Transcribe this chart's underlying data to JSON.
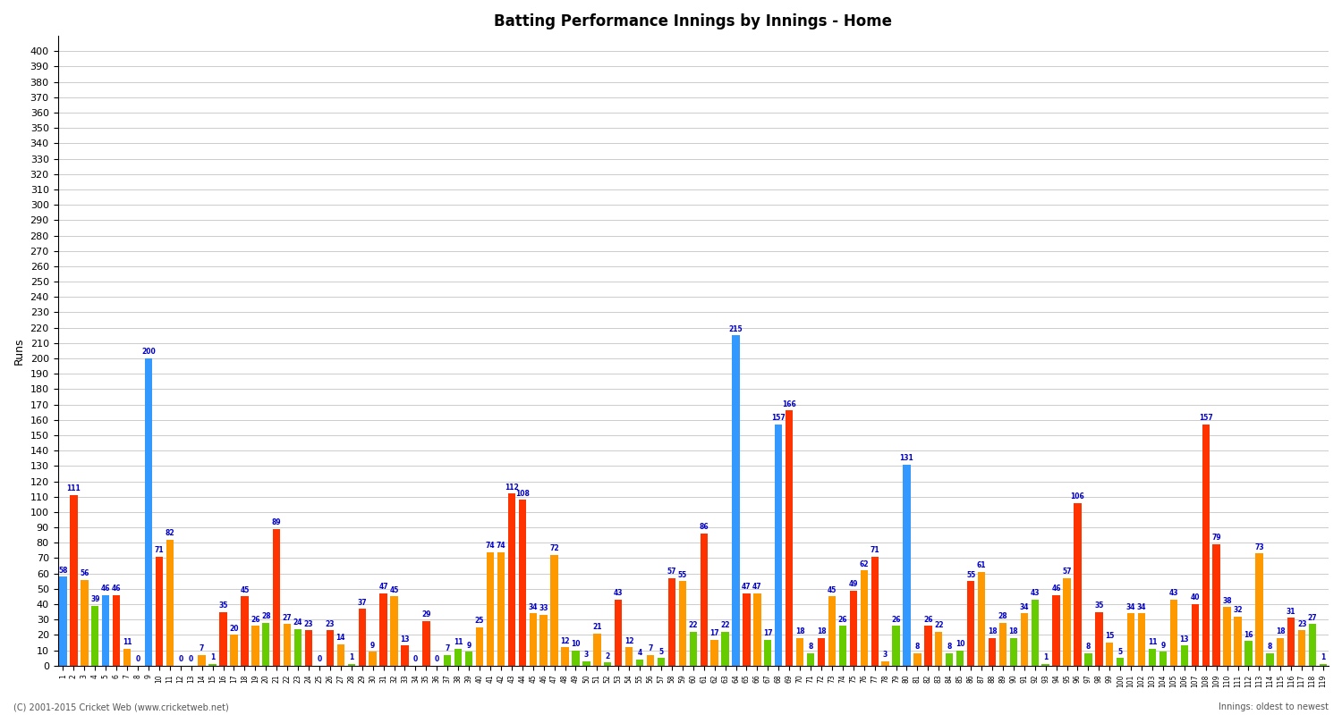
{
  "title": "Batting Performance Innings by Innings - Home",
  "ylabel": "Runs",
  "footer": "(C) 2001-2015 Cricket Web (www.cricketweb.net)",
  "footer2": "Innings: oldest to newest",
  "ylim": [
    0,
    410
  ],
  "yticks": [
    0,
    10,
    20,
    30,
    40,
    50,
    60,
    70,
    80,
    90,
    100,
    110,
    120,
    130,
    140,
    150,
    160,
    170,
    180,
    190,
    200,
    210,
    220,
    230,
    240,
    250,
    260,
    270,
    280,
    290,
    300,
    310,
    320,
    330,
    340,
    350,
    360,
    370,
    380,
    390,
    400
  ],
  "bar_width": 0.7,
  "colors": [
    "#3399FF",
    "#FF3300",
    "#FF9900",
    "#66CC00"
  ],
  "innings": [
    {
      "num": 1,
      "runs": 58,
      "type": 0
    },
    {
      "num": 2,
      "runs": 111,
      "type": 1
    },
    {
      "num": 3,
      "runs": 56,
      "type": 2
    },
    {
      "num": 4,
      "runs": 39,
      "type": 3
    },
    {
      "num": 5,
      "runs": 46,
      "type": 0
    },
    {
      "num": 6,
      "runs": 46,
      "type": 1
    },
    {
      "num": 7,
      "runs": 11,
      "type": 2
    },
    {
      "num": 8,
      "runs": 0,
      "type": 3
    },
    {
      "num": 9,
      "runs": 200,
      "type": 0
    },
    {
      "num": 10,
      "runs": 71,
      "type": 1
    },
    {
      "num": 11,
      "runs": 82,
      "type": 2
    },
    {
      "num": 12,
      "runs": 0,
      "type": 0
    },
    {
      "num": 13,
      "runs": 0,
      "type": 1
    },
    {
      "num": 14,
      "runs": 7,
      "type": 2
    },
    {
      "num": 15,
      "runs": 1,
      "type": 3
    },
    {
      "num": 16,
      "runs": 35,
      "type": 1
    },
    {
      "num": 17,
      "runs": 20,
      "type": 2
    },
    {
      "num": 18,
      "runs": 45,
      "type": 1
    },
    {
      "num": 19,
      "runs": 26,
      "type": 2
    },
    {
      "num": 20,
      "runs": 28,
      "type": 3
    },
    {
      "num": 21,
      "runs": 89,
      "type": 1
    },
    {
      "num": 22,
      "runs": 27,
      "type": 2
    },
    {
      "num": 23,
      "runs": 24,
      "type": 3
    },
    {
      "num": 24,
      "runs": 23,
      "type": 1
    },
    {
      "num": 25,
      "runs": 0,
      "type": 3
    },
    {
      "num": 26,
      "runs": 23,
      "type": 1
    },
    {
      "num": 27,
      "runs": 14,
      "type": 2
    },
    {
      "num": 28,
      "runs": 1,
      "type": 3
    },
    {
      "num": 29,
      "runs": 37,
      "type": 1
    },
    {
      "num": 30,
      "runs": 9,
      "type": 2
    },
    {
      "num": 31,
      "runs": 47,
      "type": 1
    },
    {
      "num": 32,
      "runs": 45,
      "type": 2
    },
    {
      "num": 33,
      "runs": 13,
      "type": 1
    },
    {
      "num": 34,
      "runs": 0,
      "type": 2
    },
    {
      "num": 35,
      "runs": 29,
      "type": 1
    },
    {
      "num": 36,
      "runs": 0,
      "type": 2
    },
    {
      "num": 37,
      "runs": 7,
      "type": 3
    },
    {
      "num": 38,
      "runs": 11,
      "type": 3
    },
    {
      "num": 39,
      "runs": 9,
      "type": 3
    },
    {
      "num": 40,
      "runs": 25,
      "type": 2
    },
    {
      "num": 41,
      "runs": 74,
      "type": 2
    },
    {
      "num": 42,
      "runs": 74,
      "type": 2
    },
    {
      "num": 43,
      "runs": 112,
      "type": 1
    },
    {
      "num": 44,
      "runs": 108,
      "type": 1
    },
    {
      "num": 45,
      "runs": 34,
      "type": 2
    },
    {
      "num": 46,
      "runs": 33,
      "type": 2
    },
    {
      "num": 47,
      "runs": 72,
      "type": 2
    },
    {
      "num": 48,
      "runs": 12,
      "type": 2
    },
    {
      "num": 49,
      "runs": 10,
      "type": 3
    },
    {
      "num": 50,
      "runs": 3,
      "type": 3
    },
    {
      "num": 51,
      "runs": 21,
      "type": 2
    },
    {
      "num": 52,
      "runs": 2,
      "type": 3
    },
    {
      "num": 53,
      "runs": 43,
      "type": 1
    },
    {
      "num": 54,
      "runs": 12,
      "type": 2
    },
    {
      "num": 55,
      "runs": 4,
      "type": 3
    },
    {
      "num": 56,
      "runs": 7,
      "type": 2
    },
    {
      "num": 57,
      "runs": 5,
      "type": 3
    },
    {
      "num": 58,
      "runs": 57,
      "type": 1
    },
    {
      "num": 59,
      "runs": 55,
      "type": 2
    },
    {
      "num": 60,
      "runs": 22,
      "type": 3
    },
    {
      "num": 61,
      "runs": 86,
      "type": 1
    },
    {
      "num": 62,
      "runs": 17,
      "type": 2
    },
    {
      "num": 63,
      "runs": 22,
      "type": 3
    },
    {
      "num": 64,
      "runs": 215,
      "type": 0
    },
    {
      "num": 65,
      "runs": 47,
      "type": 1
    },
    {
      "num": 66,
      "runs": 47,
      "type": 2
    },
    {
      "num": 67,
      "runs": 17,
      "type": 3
    },
    {
      "num": 68,
      "runs": 157,
      "type": 0
    },
    {
      "num": 69,
      "runs": 166,
      "type": 1
    },
    {
      "num": 70,
      "runs": 18,
      "type": 2
    },
    {
      "num": 71,
      "runs": 8,
      "type": 3
    },
    {
      "num": 72,
      "runs": 18,
      "type": 1
    },
    {
      "num": 73,
      "runs": 45,
      "type": 2
    },
    {
      "num": 74,
      "runs": 26,
      "type": 3
    },
    {
      "num": 75,
      "runs": 49,
      "type": 1
    },
    {
      "num": 76,
      "runs": 62,
      "type": 2
    },
    {
      "num": 77,
      "runs": 71,
      "type": 1
    },
    {
      "num": 78,
      "runs": 3,
      "type": 2
    },
    {
      "num": 79,
      "runs": 26,
      "type": 3
    },
    {
      "num": 80,
      "runs": 131,
      "type": 0
    },
    {
      "num": 81,
      "runs": 8,
      "type": 2
    },
    {
      "num": 82,
      "runs": 26,
      "type": 1
    },
    {
      "num": 83,
      "runs": 22,
      "type": 2
    },
    {
      "num": 84,
      "runs": 8,
      "type": 3
    },
    {
      "num": 85,
      "runs": 10,
      "type": 3
    },
    {
      "num": 86,
      "runs": 55,
      "type": 1
    },
    {
      "num": 87,
      "runs": 61,
      "type": 2
    },
    {
      "num": 88,
      "runs": 18,
      "type": 1
    },
    {
      "num": 89,
      "runs": 28,
      "type": 2
    },
    {
      "num": 90,
      "runs": 18,
      "type": 3
    },
    {
      "num": 91,
      "runs": 34,
      "type": 2
    },
    {
      "num": 92,
      "runs": 43,
      "type": 3
    },
    {
      "num": 93,
      "runs": 1,
      "type": 3
    },
    {
      "num": 94,
      "runs": 46,
      "type": 1
    },
    {
      "num": 95,
      "runs": 57,
      "type": 2
    },
    {
      "num": 96,
      "runs": 106,
      "type": 1
    },
    {
      "num": 97,
      "runs": 8,
      "type": 3
    },
    {
      "num": 98,
      "runs": 35,
      "type": 1
    },
    {
      "num": 99,
      "runs": 15,
      "type": 2
    },
    {
      "num": 100,
      "runs": 5,
      "type": 3
    },
    {
      "num": 101,
      "runs": 34,
      "type": 2
    },
    {
      "num": 102,
      "runs": 34,
      "type": 2
    },
    {
      "num": 103,
      "runs": 11,
      "type": 3
    },
    {
      "num": 104,
      "runs": 9,
      "type": 3
    },
    {
      "num": 105,
      "runs": 43,
      "type": 2
    },
    {
      "num": 106,
      "runs": 13,
      "type": 3
    },
    {
      "num": 107,
      "runs": 40,
      "type": 1
    },
    {
      "num": 108,
      "runs": 157,
      "type": 1
    },
    {
      "num": 109,
      "runs": 79,
      "type": 1
    },
    {
      "num": 110,
      "runs": 38,
      "type": 2
    },
    {
      "num": 111,
      "runs": 32,
      "type": 2
    },
    {
      "num": 112,
      "runs": 16,
      "type": 3
    },
    {
      "num": 113,
      "runs": 73,
      "type": 2
    },
    {
      "num": 114,
      "runs": 8,
      "type": 3
    },
    {
      "num": 115,
      "runs": 18,
      "type": 2
    },
    {
      "num": 116,
      "runs": 31,
      "type": 1
    },
    {
      "num": 117,
      "runs": 23,
      "type": 2
    },
    {
      "num": 118,
      "runs": 27,
      "type": 3
    },
    {
      "num": 119,
      "runs": 1,
      "type": 3
    }
  ]
}
